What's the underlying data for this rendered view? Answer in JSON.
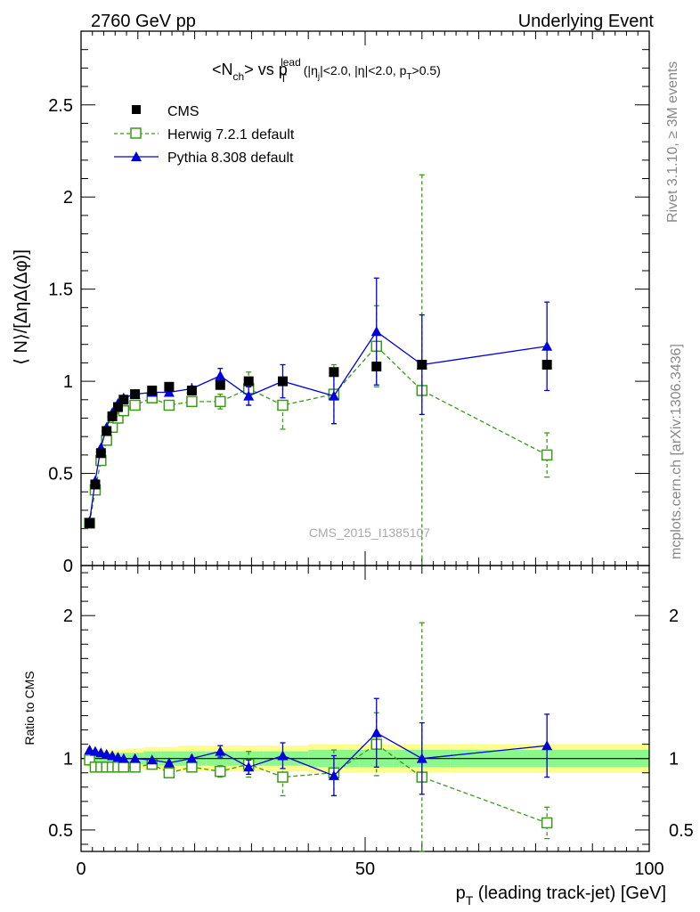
{
  "header": {
    "left": "2760 GeV pp",
    "right": "Underlying Event"
  },
  "title": {
    "main": "<N",
    "ch_sub": "ch",
    "vs": "> vs p",
    "t_sub": "T",
    "lead_sup": "lead",
    "cuts_a": "(|η",
    "j_sub": "j",
    "cuts_b": "|<2.0, |η|<2.0, p",
    "t2_sub": "T",
    "cuts_c": ">0.5)"
  },
  "side_labels": {
    "rivet": "Rivet 3.1.10, ≥ 3M events",
    "mcplots": "mcplots.cern.ch [arXiv:1306.3436]"
  },
  "watermark": "CMS_2015_I1385107",
  "axes": {
    "ylabel_top": "⟨ N⟩/[ΔηΔ(Δφ)]",
    "ylabel_bottom": "Ratio to CMS",
    "xlabel_p": "p",
    "xlabel_sub": "T",
    "xlabel_rest": " (leading track-jet) [GeV]"
  },
  "legend": {
    "cms": "CMS",
    "herwig": "Herwig 7.2.1 default",
    "pythia": "Pythia 8.308 default"
  },
  "colors": {
    "cms": "#000000",
    "herwig": "#3a9a16",
    "pythia": "#0000dd",
    "band_inner": "#8cf78c",
    "band_outer": "#fdfd8c"
  },
  "chart_data": {
    "type": "scatter",
    "x_range": [
      0,
      100
    ],
    "main_y_range": [
      0,
      2.9
    ],
    "ratio_y_range": [
      0.35,
      2.35
    ],
    "x_ticks": [
      0,
      50,
      100
    ],
    "main_y_ticks": [
      0,
      0.5,
      1,
      1.5,
      2,
      2.5
    ],
    "ratio_y_ticks": [
      0.5,
      1,
      2
    ],
    "series": [
      {
        "name": "CMS",
        "x": [
          1.5,
          2.5,
          3.5,
          4.5,
          5.5,
          6.5,
          7.5,
          9.5,
          12.5,
          15.5,
          19.5,
          24.5,
          29.5,
          35.5,
          44.5,
          52,
          60,
          82
        ],
        "y": [
          0.23,
          0.44,
          0.61,
          0.73,
          0.81,
          0.86,
          0.9,
          0.93,
          0.95,
          0.97,
          0.95,
          0.98,
          1.0,
          1.0,
          1.05,
          1.08,
          1.09,
          1.09
        ]
      },
      {
        "name": "Herwig 7.2.1 default",
        "x": [
          1.5,
          2.5,
          3.5,
          4.5,
          5.5,
          6.5,
          7.5,
          9.5,
          12.5,
          15.5,
          19.5,
          24.5,
          29.5,
          35.5,
          44.5,
          52,
          60,
          82
        ],
        "y": [
          0.23,
          0.41,
          0.57,
          0.68,
          0.75,
          0.8,
          0.84,
          0.87,
          0.91,
          0.87,
          0.89,
          0.89,
          0.96,
          0.87,
          0.93,
          1.19,
          0.95,
          0.6
        ],
        "err": [
          0.01,
          0.01,
          0.01,
          0.01,
          0.01,
          0.01,
          0.01,
          0.01,
          0.02,
          0.02,
          0.03,
          0.04,
          0.09,
          0.13,
          0.16,
          0.22,
          1.17,
          0.12
        ],
        "ratio": [
          0.99,
          0.94,
          0.94,
          0.94,
          0.94,
          0.94,
          0.94,
          0.94,
          0.96,
          0.9,
          0.94,
          0.91,
          0.96,
          0.87,
          0.9,
          1.1,
          0.87,
          0.55
        ],
        "ratio_err": [
          0.01,
          0.01,
          0.01,
          0.01,
          0.01,
          0.01,
          0.01,
          0.01,
          0.02,
          0.02,
          0.03,
          0.04,
          0.09,
          0.13,
          0.16,
          0.22,
          1.08,
          0.11
        ]
      },
      {
        "name": "Pythia 8.308 default",
        "x": [
          1.5,
          2.5,
          3.5,
          4.5,
          5.5,
          6.5,
          7.5,
          9.5,
          12.5,
          15.5,
          19.5,
          24.5,
          29.5,
          35.5,
          44.5,
          52,
          60,
          82
        ],
        "y": [
          0.24,
          0.46,
          0.64,
          0.75,
          0.83,
          0.88,
          0.91,
          0.93,
          0.94,
          0.94,
          0.96,
          1.03,
          0.92,
          1.0,
          0.92,
          1.27,
          1.09,
          1.19
        ],
        "err": [
          0.01,
          0.01,
          0.01,
          0.01,
          0.01,
          0.01,
          0.01,
          0.01,
          0.02,
          0.02,
          0.03,
          0.04,
          0.05,
          0.09,
          0.15,
          0.29,
          0.27,
          0.24
        ],
        "ratio": [
          1.06,
          1.05,
          1.04,
          1.03,
          1.02,
          1.01,
          1.0,
          1.0,
          0.99,
          0.97,
          1.0,
          1.05,
          0.94,
          1.02,
          0.88,
          1.18,
          1.0,
          1.09
        ],
        "ratio_err": [
          0.01,
          0.01,
          0.01,
          0.01,
          0.01,
          0.01,
          0.01,
          0.01,
          0.02,
          0.02,
          0.03,
          0.04,
          0.05,
          0.09,
          0.14,
          0.24,
          0.25,
          0.22
        ]
      }
    ],
    "cms_band": {
      "x_edges": [
        1,
        2,
        3,
        4,
        5,
        6,
        7,
        8,
        11,
        14,
        17,
        22,
        27,
        32,
        40,
        49,
        55,
        65,
        100
      ],
      "inner": [
        0.04,
        0.04,
        0.04,
        0.04,
        0.04,
        0.04,
        0.04,
        0.04,
        0.05,
        0.05,
        0.05,
        0.05,
        0.05,
        0.05,
        0.06,
        0.06,
        0.06,
        0.06
      ],
      "outer": [
        0.06,
        0.06,
        0.06,
        0.06,
        0.06,
        0.06,
        0.06,
        0.07,
        0.08,
        0.08,
        0.09,
        0.09,
        0.09,
        0.09,
        0.1,
        0.1,
        0.1,
        0.1
      ]
    }
  }
}
